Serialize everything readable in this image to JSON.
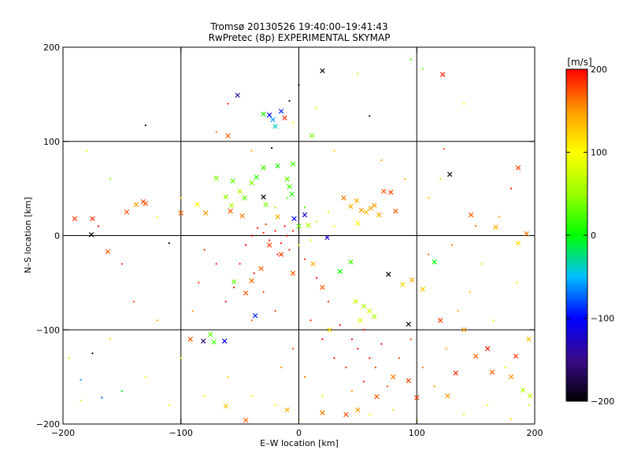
{
  "chart_data": {
    "type": "scatter",
    "title": "Tromsø 20130526 19:40:00–19:41:43",
    "subtitle": "RwPretec (8p) EXPERIMENTAL SKYMAP",
    "xlabel": "E–W location [km]",
    "ylabel": "N–S location [km]",
    "xlim": [
      -200,
      200
    ],
    "ylim": [
      -200,
      200
    ],
    "xticks": [
      -200,
      -100,
      0,
      100,
      200
    ],
    "yticks": [
      -200,
      -100,
      0,
      100,
      200
    ],
    "grid": true,
    "colorbar": {
      "label": "[m/s]",
      "range": [
        -200,
        200
      ],
      "ticks": [
        200,
        100,
        0,
        -100,
        -200
      ],
      "colormap": "rainbow: black (-200) → blue (-100) → green (0) → yellow (100) → red (200)"
    },
    "series": [
      {
        "marker": "x",
        "points": [
          [
            -190,
            18,
            180
          ],
          [
            -175,
            18,
            185
          ],
          [
            -176,
            1,
            -200
          ],
          [
            -162,
            -17,
            170
          ],
          [
            -146,
            25,
            175
          ],
          [
            -138,
            33,
            150
          ],
          [
            -132,
            36,
            175
          ],
          [
            -130,
            34,
            175
          ],
          [
            -100,
            24,
            170
          ],
          [
            -86,
            33,
            100
          ],
          [
            -79,
            24,
            150
          ],
          [
            -60,
            106,
            170
          ],
          [
            -58,
            26,
            170
          ],
          [
            -57,
            32,
            60
          ],
          [
            -55,
            -49,
            30
          ],
          [
            -52,
            149,
            -140
          ],
          [
            -48,
            21,
            160
          ],
          [
            -45,
            -61,
            170
          ],
          [
            -40,
            -48,
            165
          ],
          [
            -37,
            -85,
            -90
          ],
          [
            -32,
            -35,
            170
          ],
          [
            -30,
            129,
            10
          ],
          [
            -30,
            41,
            -200
          ],
          [
            -28,
            33,
            40
          ],
          [
            -25,
            128,
            -100
          ],
          [
            -22,
            123,
            -60
          ],
          [
            -20,
            116,
            -40
          ],
          [
            -18,
            20,
            140
          ],
          [
            -15,
            132,
            -90
          ],
          [
            -12,
            125,
            190
          ],
          [
            -10,
            60,
            30
          ],
          [
            -8,
            52,
            20
          ],
          [
            -6,
            44,
            10
          ],
          [
            -4,
            18,
            -100
          ],
          [
            0,
            10,
            30
          ],
          [
            5,
            22,
            -120
          ],
          [
            8,
            11,
            60
          ],
          [
            11,
            106,
            40
          ],
          [
            20,
            175,
            -200
          ],
          [
            24,
            -2,
            -120
          ],
          [
            -5,
            76,
            20
          ],
          [
            -18,
            74,
            10
          ],
          [
            -30,
            72,
            20
          ],
          [
            -40,
            56,
            40
          ],
          [
            -50,
            47,
            60
          ],
          [
            -56,
            58,
            30
          ],
          [
            -62,
            41,
            50
          ],
          [
            -70,
            61,
            40
          ],
          [
            -46,
            40,
            30
          ],
          [
            -36,
            62,
            15
          ],
          [
            38,
            40,
            160
          ],
          [
            44,
            31,
            140
          ],
          [
            49,
            37,
            140
          ],
          [
            53,
            27,
            150
          ],
          [
            57,
            25,
            130
          ],
          [
            61,
            29,
            145
          ],
          [
            64,
            32,
            150
          ],
          [
            68,
            22,
            140
          ],
          [
            72,
            47,
            170
          ],
          [
            78,
            46,
            180
          ],
          [
            82,
            26,
            170
          ],
          [
            50,
            13,
            100
          ],
          [
            44,
            -28,
            20
          ],
          [
            35,
            -38,
            0
          ],
          [
            48,
            -70,
            70
          ],
          [
            55,
            -75,
            60
          ],
          [
            60,
            -80,
            80
          ],
          [
            64,
            -86,
            60
          ],
          [
            52,
            -90,
            90
          ],
          [
            76,
            -41,
            -200
          ],
          [
            93,
            -94,
            -200
          ],
          [
            88,
            -52,
            120
          ],
          [
            96,
            -47,
            140
          ],
          [
            105,
            -57,
            130
          ],
          [
            115,
            -28,
            0
          ],
          [
            128,
            65,
            -200
          ],
          [
            122,
            171,
            190
          ],
          [
            146,
            22,
            170
          ],
          [
            167,
            9,
            140
          ],
          [
            186,
            72,
            180
          ],
          [
            193,
            2,
            160
          ],
          [
            186,
            -8,
            120
          ],
          [
            184,
            -128,
            180
          ],
          [
            180,
            -150,
            150
          ],
          [
            164,
            -145,
            170
          ],
          [
            150,
            -128,
            170
          ],
          [
            133,
            -146,
            185
          ],
          [
            126,
            -170,
            150
          ],
          [
            100,
            -172,
            180
          ],
          [
            93,
            -154,
            180
          ],
          [
            80,
            -150,
            160
          ],
          [
            66,
            -171,
            170
          ],
          [
            50,
            -185,
            150
          ],
          [
            40,
            -190,
            175
          ],
          [
            20,
            -188,
            160
          ],
          [
            -10,
            -185,
            140
          ],
          [
            -45,
            -196,
            170
          ],
          [
            -62,
            -181,
            130
          ],
          [
            -63,
            -112,
            -100
          ],
          [
            -72,
            -113,
            20
          ],
          [
            -75,
            -105,
            30
          ],
          [
            -81,
            -112,
            -160
          ],
          [
            -92,
            -110,
            170
          ],
          [
            160,
            -120,
            190
          ],
          [
            195,
            -110,
            130
          ],
          [
            190,
            -164,
            60
          ],
          [
            196,
            -170,
            70
          ],
          [
            120,
            -90,
            180
          ],
          [
            140,
            -100,
            150
          ],
          [
            20,
            -55,
            170
          ],
          [
            -5,
            -40,
            170
          ],
          [
            -15,
            -20,
            180
          ],
          [
            12,
            -30,
            140
          ],
          [
            -25,
            -10,
            180
          ],
          [
            26,
            -100,
            120
          ]
        ]
      },
      {
        "marker": "dot",
        "points": [
          [
            -10,
            0,
            200
          ],
          [
            -20,
            5,
            200
          ],
          [
            -30,
            3,
            190
          ],
          [
            -25,
            -5,
            200
          ],
          [
            -15,
            -8,
            200
          ],
          [
            -35,
            8,
            200
          ],
          [
            -5,
            5,
            190
          ],
          [
            -40,
            0,
            200
          ],
          [
            -12,
            10,
            200
          ],
          [
            -28,
            12,
            180
          ],
          [
            -8,
            -15,
            190
          ],
          [
            -18,
            -20,
            200
          ],
          [
            -45,
            -10,
            200
          ],
          [
            -50,
            -30,
            200
          ],
          [
            -38,
            -40,
            200
          ],
          [
            -30,
            -60,
            180
          ],
          [
            -55,
            -55,
            200
          ],
          [
            -62,
            -70,
            200
          ],
          [
            -20,
            -80,
            190
          ],
          [
            -40,
            -90,
            170
          ],
          [
            -70,
            -30,
            200
          ],
          [
            -80,
            -15,
            190
          ],
          [
            -85,
            -50,
            180
          ],
          [
            -90,
            -80,
            150
          ],
          [
            5,
            -25,
            190
          ],
          [
            15,
            -45,
            200
          ],
          [
            25,
            -70,
            190
          ],
          [
            35,
            -95,
            200
          ],
          [
            45,
            -110,
            200
          ],
          [
            55,
            -100,
            200
          ],
          [
            50,
            -120,
            200
          ],
          [
            60,
            -130,
            200
          ],
          [
            40,
            -140,
            190
          ],
          [
            70,
            -115,
            200
          ],
          [
            65,
            -140,
            180
          ],
          [
            75,
            -160,
            170
          ],
          [
            55,
            -155,
            200
          ],
          [
            45,
            -165,
            150
          ],
          [
            30,
            -130,
            200
          ],
          [
            20,
            -110,
            200
          ],
          [
            10,
            -90,
            190
          ],
          [
            -5,
            -120,
            170
          ],
          [
            -15,
            -140,
            150
          ],
          [
            5,
            -150,
            160
          ],
          [
            85,
            -130,
            180
          ],
          [
            95,
            -110,
            170
          ],
          [
            105,
            -140,
            160
          ],
          [
            115,
            -160,
            150
          ],
          [
            125,
            -120,
            140
          ],
          [
            135,
            -80,
            150
          ],
          [
            145,
            -60,
            130
          ],
          [
            155,
            -30,
            120
          ],
          [
            165,
            -90,
            110
          ],
          [
            175,
            -140,
            100
          ],
          [
            185,
            -50,
            120
          ],
          [
            110,
            -20,
            170
          ],
          [
            130,
            -10,
            160
          ],
          [
            150,
            10,
            170
          ],
          [
            170,
            20,
            150
          ],
          [
            180,
            50,
            190
          ],
          [
            -140,
            -70,
            180
          ],
          [
            -160,
            -110,
            120
          ],
          [
            -130,
            -150,
            100
          ],
          [
            -110,
            -180,
            90
          ],
          [
            -100,
            -130,
            110
          ],
          [
            -120,
            -90,
            150
          ],
          [
            -150,
            -30,
            190
          ],
          [
            -170,
            10,
            200
          ],
          [
            -195,
            -130,
            60
          ],
          [
            -185,
            -175,
            80
          ],
          [
            -80,
            -170,
            110
          ],
          [
            -60,
            -150,
            120
          ],
          [
            -40,
            -170,
            110
          ],
          [
            -20,
            -180,
            100
          ],
          [
            0,
            -195,
            110
          ],
          [
            20,
            -170,
            90
          ],
          [
            60,
            -190,
            100
          ],
          [
            80,
            -185,
            120
          ],
          [
            100,
            -195,
            110
          ],
          [
            140,
            -190,
            90
          ],
          [
            160,
            -180,
            100
          ],
          [
            180,
            -195,
            120
          ],
          [
            195,
            -180,
            80
          ],
          [
            -20,
            30,
            50
          ],
          [
            -10,
            40,
            30
          ],
          [
            5,
            30,
            20
          ],
          [
            15,
            15,
            60
          ],
          [
            25,
            25,
            80
          ],
          [
            30,
            10,
            100
          ],
          [
            10,
            -5,
            80
          ],
          [
            0,
            -10,
            100
          ],
          [
            -100,
            40,
            120
          ],
          [
            -120,
            20,
            100
          ],
          [
            -160,
            60,
            40
          ],
          [
            -180,
            90,
            80
          ],
          [
            -130,
            117,
            -200
          ],
          [
            -110,
            -8,
            -200
          ],
          [
            -175,
            -125,
            -200
          ],
          [
            -185,
            -153,
            -60
          ],
          [
            -167,
            -172,
            -80
          ],
          [
            -150,
            -165,
            -10
          ],
          [
            0,
            160,
            -200
          ],
          [
            -8,
            143,
            -200
          ],
          [
            60,
            127,
            -200
          ],
          [
            95,
            187,
            20
          ],
          [
            105,
            177,
            30
          ],
          [
            123,
            92,
            180
          ],
          [
            -23,
            93,
            -200
          ],
          [
            50,
            172,
            60
          ],
          [
            140,
            140,
            100
          ],
          [
            -60,
            140,
            190
          ],
          [
            -70,
            110,
            160
          ],
          [
            -40,
            90,
            140
          ],
          [
            30,
            90,
            120
          ],
          [
            70,
            80,
            150
          ],
          [
            90,
            60,
            140
          ],
          [
            110,
            40,
            130
          ],
          [
            120,
            60,
            120
          ],
          [
            -5,
            120,
            100
          ],
          [
            15,
            135,
            80
          ]
        ]
      }
    ]
  }
}
